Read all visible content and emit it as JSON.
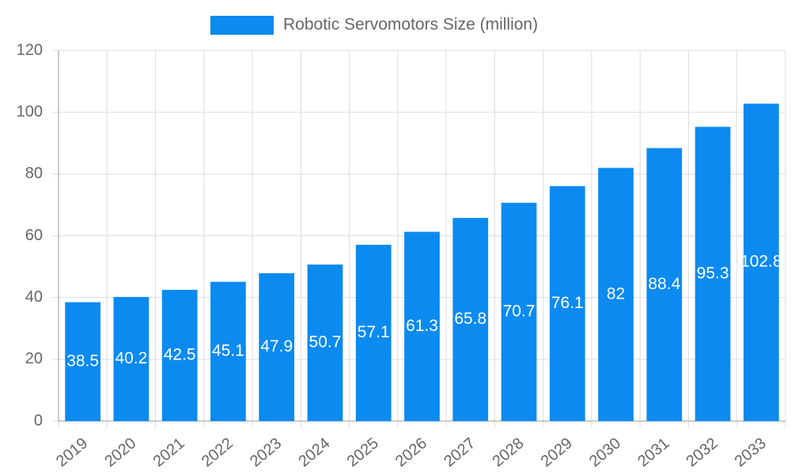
{
  "chart_data": {
    "type": "bar",
    "categories": [
      "2019",
      "2020",
      "2021",
      "2022",
      "2023",
      "2024",
      "2025",
      "2026",
      "2027",
      "2028",
      "2029",
      "2030",
      "2031",
      "2032",
      "2033"
    ],
    "series": [
      {
        "name": "Robotic Servomotors Size (million)",
        "color": "#0b8af0",
        "values": [
          38.5,
          40.2,
          42.5,
          45.1,
          47.9,
          50.7,
          57.1,
          61.3,
          65.8,
          70.7,
          76.1,
          82,
          88.4,
          95.3,
          102.8
        ]
      }
    ],
    "ylim": [
      0,
      120
    ],
    "yticks": [
      0,
      20,
      40,
      60,
      80,
      100,
      120
    ],
    "grid": true,
    "legend": "top"
  }
}
